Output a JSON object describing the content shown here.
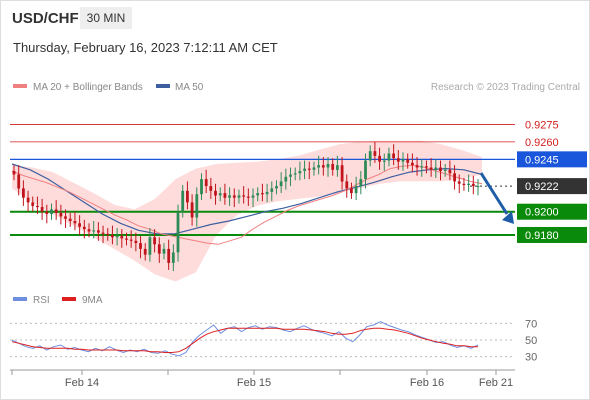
{
  "header": {
    "pair": "USD/CHF",
    "timeframe": "30 MIN",
    "datetime": "Thursday, February 16, 2023 7:12:11 AM CET"
  },
  "legend": {
    "ma20": "MA 20 + Bollinger Bands",
    "ma50": "MA 50",
    "credit": "Research © 2023 Trading Central"
  },
  "rsi_legend": {
    "rsi": "RSI",
    "ma": "9MA"
  },
  "colors": {
    "bollinger": "#ffdcdc",
    "ma20": "#f08080",
    "ma50": "#3d5fa0",
    "bull": "#2e8b57",
    "bear": "#c0141c",
    "resistance": "#d21e1e",
    "pivot": "#1a56db",
    "support": "#0a8a0a",
    "current": "#333333",
    "arrow": "#1f5ca8",
    "rsi": "#6e8fe0",
    "rsi_ma": "#dd1f1f"
  },
  "chart_data": [
    {
      "type": "candlestick",
      "title": "USD/CHF",
      "timeframe": "30 MIN",
      "x_ticks": [
        "Feb 14",
        "Feb 15",
        "Feb 16",
        "Feb 21"
      ],
      "ylim": [
        0.9137,
        0.9296
      ],
      "levels": [
        {
          "label": "0.9275",
          "value": 0.9275,
          "kind": "resistance",
          "style": "thin"
        },
        {
          "label": "0.9260",
          "value": 0.926,
          "kind": "resistance",
          "style": "thin"
        },
        {
          "label": "0.9245",
          "value": 0.9245,
          "kind": "pivot",
          "style": "thick"
        },
        {
          "label": "0.9222",
          "value": 0.9222,
          "kind": "current",
          "style": "dotted"
        },
        {
          "label": "0.9200",
          "value": 0.92,
          "kind": "support",
          "style": "thick"
        },
        {
          "label": "0.9180",
          "value": 0.918,
          "kind": "support",
          "style": "thick"
        }
      ],
      "closes": [
        0.9232,
        0.922,
        0.9212,
        0.9208,
        0.9205,
        0.9204,
        0.92,
        0.9198,
        0.9202,
        0.9199,
        0.9196,
        0.9194,
        0.9192,
        0.919,
        0.9187,
        0.9185,
        0.9183,
        0.9184,
        0.9182,
        0.9181,
        0.918,
        0.9178,
        0.9179,
        0.9177,
        0.9176,
        0.9175,
        0.9173,
        0.9168,
        0.9163,
        0.9178,
        0.9172,
        0.9164,
        0.9168,
        0.9156,
        0.9165,
        0.92,
        0.9218,
        0.9208,
        0.9195,
        0.9215,
        0.9228,
        0.9222,
        0.9218,
        0.9214,
        0.9216,
        0.9212,
        0.9214,
        0.9212,
        0.9214,
        0.9213,
        0.9212,
        0.9214,
        0.9216,
        0.9215,
        0.9217,
        0.922,
        0.9222,
        0.9226,
        0.923,
        0.9232,
        0.9233,
        0.9235,
        0.9237,
        0.9236,
        0.9238,
        0.924,
        0.9238,
        0.9241,
        0.9236,
        0.924,
        0.9226,
        0.922,
        0.9216,
        0.9222,
        0.9228,
        0.9244,
        0.9252,
        0.9248,
        0.9243,
        0.9244,
        0.925,
        0.9246,
        0.9243,
        0.9245,
        0.9242,
        0.924,
        0.9238,
        0.9239,
        0.9238,
        0.9236,
        0.9238,
        0.9235,
        0.9236,
        0.9233,
        0.9226,
        0.9224,
        0.9223,
        0.9224,
        0.9222,
        0.9222
      ],
      "ma20": [
        0.9235,
        0.9231,
        0.9228,
        0.9225,
        0.9221,
        0.9217,
        0.9212,
        0.9207,
        0.9202,
        0.9197,
        0.9193,
        0.9188,
        0.9185,
        0.9181,
        0.9179,
        0.9177,
        0.9175,
        0.9173,
        0.9172,
        0.9175,
        0.9178,
        0.9185,
        0.9191,
        0.9196,
        0.9201,
        0.9205,
        0.9208,
        0.9211,
        0.9214,
        0.9218,
        0.9223,
        0.9228,
        0.9232,
        0.9237,
        0.9239,
        0.924,
        0.9238,
        0.9235,
        0.9232,
        0.9229,
        0.9226,
        0.9224
      ],
      "ma50": [
        0.9241,
        0.9236,
        0.9228,
        0.9218,
        0.9208,
        0.9198,
        0.919,
        0.9184,
        0.9181,
        0.9181,
        0.9185,
        0.9189,
        0.9192,
        0.9196,
        0.92,
        0.9203,
        0.9207,
        0.9212,
        0.9217,
        0.9221,
        0.9225,
        0.923,
        0.9234,
        0.9236,
        0.9237,
        0.9236,
        0.9232
      ],
      "bollinger_upper": [
        0.924,
        0.9238,
        0.9234,
        0.9225,
        0.9216,
        0.9206,
        0.9202,
        0.9211,
        0.9228,
        0.9237,
        0.9241,
        0.9242,
        0.9243,
        0.9245,
        0.9248,
        0.9253,
        0.9258,
        0.926,
        0.9261,
        0.9261,
        0.9261,
        0.9258,
        0.9253,
        0.9247
      ],
      "bollinger_lower": [
        0.922,
        0.9208,
        0.9198,
        0.9188,
        0.9178,
        0.9168,
        0.9158,
        0.9146,
        0.914,
        0.9148,
        0.918,
        0.9197,
        0.9205,
        0.9209,
        0.9211,
        0.9213,
        0.9216,
        0.922,
        0.9224,
        0.9226,
        0.9226,
        0.9226,
        0.9228,
        0.9232
      ]
    },
    {
      "type": "line",
      "title": "RSI",
      "series": [
        {
          "name": "RSI",
          "values": [
            50,
            46,
            42,
            40,
            43,
            38,
            42,
            44,
            39,
            41,
            38,
            36,
            40,
            37,
            42,
            38,
            35,
            38,
            36,
            39,
            35,
            34,
            37,
            33,
            31,
            35,
            48,
            56,
            62,
            68,
            58,
            64,
            66,
            60,
            65,
            67,
            63,
            66,
            65,
            62,
            60,
            64,
            67,
            63,
            60,
            58,
            55,
            60,
            52,
            48,
            56,
            66,
            68,
            72,
            68,
            65,
            62,
            60,
            56,
            53,
            50,
            47,
            48,
            44,
            41,
            43,
            40,
            44
          ]
        },
        {
          "name": "9MA",
          "values": [
            48,
            46,
            44,
            42,
            41,
            40,
            40,
            40,
            40,
            39,
            39,
            38,
            38,
            38,
            38,
            38,
            37,
            37,
            37,
            37,
            36,
            36,
            35,
            35,
            36,
            40,
            46,
            52,
            57,
            60,
            62,
            64,
            64,
            64,
            64,
            64,
            64,
            64,
            64,
            63,
            63,
            63,
            63,
            62,
            61,
            60,
            58,
            57,
            57,
            58,
            61,
            63,
            64,
            64,
            63,
            62,
            60,
            58,
            55,
            52,
            50,
            48,
            46,
            45,
            43,
            43,
            42,
            42
          ]
        }
      ],
      "y_ticks": [
        70,
        50,
        30
      ],
      "ylim": [
        20,
        80
      ]
    }
  ]
}
